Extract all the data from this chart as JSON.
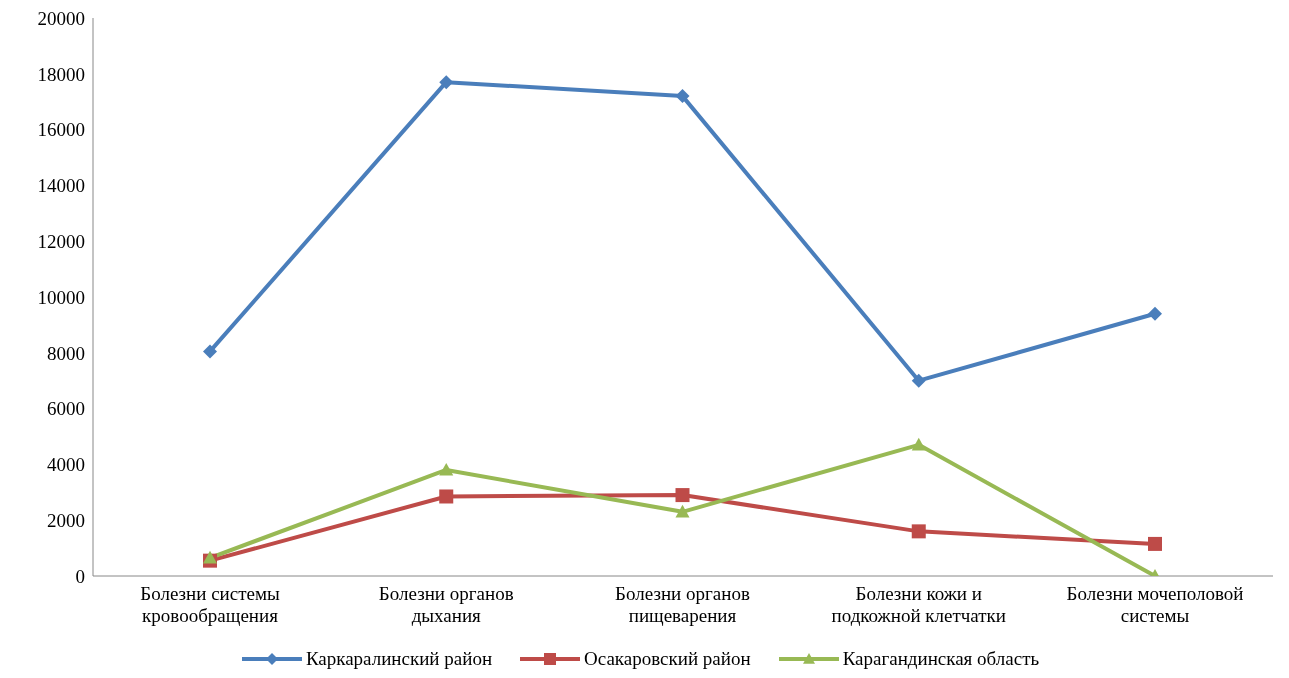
{
  "chart_data": {
    "type": "line",
    "categories": [
      "Болезни системы кровообращения",
      "Болезни органов дыхания",
      "Болезни органов пищеварения",
      "Болезни кожи и подкожной клетчатки",
      "Болезни мочеполовой системы"
    ],
    "series": [
      {
        "name": "Каркаралинский район",
        "color": "#4a7ebb",
        "marker": "diamond",
        "values": [
          8050,
          17700,
          17200,
          7000,
          9400
        ]
      },
      {
        "name": "Осакаровский район",
        "color": "#be4b48",
        "marker": "square",
        "values": [
          550,
          2850,
          2900,
          1600,
          1150
        ]
      },
      {
        "name": "Карагандинская область",
        "color": "#98b954",
        "marker": "triangle",
        "values": [
          650,
          3800,
          2300,
          4700,
          0
        ]
      }
    ],
    "ylim": [
      0,
      20000
    ],
    "yticks": [
      0,
      2000,
      4000,
      6000,
      8000,
      10000,
      12000,
      14000,
      16000,
      18000,
      20000
    ],
    "grid": false,
    "legend": "bottom"
  }
}
